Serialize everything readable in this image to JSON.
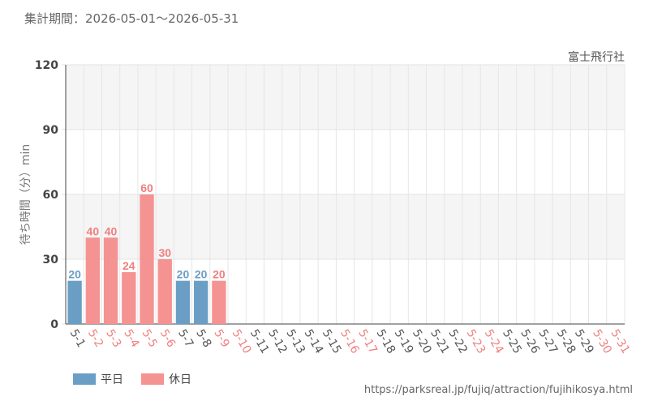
{
  "header": {
    "period": "集計期間：2026-05-01～2026-05-31"
  },
  "attraction": "富士飛行社",
  "source_url": "https://parksreal.jp/fujiq/attraction/fujihikosya.html",
  "legend": [
    {
      "label": "平日",
      "color": "#6a9ec5"
    },
    {
      "label": "休日",
      "color": "#f49392"
    }
  ],
  "chart_data": {
    "type": "bar",
    "ylabel": "待ち時間（分）min",
    "ylim": [
      0,
      120
    ],
    "yticks": [
      0,
      30,
      60,
      90,
      120
    ],
    "grid": true,
    "legend_position": "bottom-left",
    "categories": [
      "5-1",
      "5-2",
      "5-3",
      "5-4",
      "5-5",
      "5-6",
      "5-7",
      "5-8",
      "5-9",
      "5-10",
      "5-11",
      "5-12",
      "5-13",
      "5-14",
      "5-15",
      "5-16",
      "5-17",
      "5-18",
      "5-19",
      "5-20",
      "5-21",
      "5-22",
      "5-23",
      "5-24",
      "5-25",
      "5-26",
      "5-27",
      "5-28",
      "5-29",
      "5-30",
      "5-31"
    ],
    "day_types": [
      "weekday",
      "holiday",
      "holiday",
      "holiday",
      "holiday",
      "holiday",
      "weekday",
      "weekday",
      "holiday",
      "holiday",
      "weekday",
      "weekday",
      "weekday",
      "weekday",
      "weekday",
      "holiday",
      "holiday",
      "weekday",
      "weekday",
      "weekday",
      "weekday",
      "weekday",
      "holiday",
      "holiday",
      "weekday",
      "weekday",
      "weekday",
      "weekday",
      "weekday",
      "holiday",
      "holiday"
    ],
    "values": [
      20,
      40,
      40,
      24,
      60,
      30,
      20,
      20,
      20,
      null,
      null,
      null,
      null,
      null,
      null,
      null,
      null,
      null,
      null,
      null,
      null,
      null,
      null,
      null,
      null,
      null,
      null,
      null,
      null,
      null,
      null
    ],
    "colors": {
      "weekday": "#6a9ec5",
      "holiday": "#f49392",
      "weekday_text": "#555555",
      "holiday_text": "#f07f7e"
    }
  }
}
